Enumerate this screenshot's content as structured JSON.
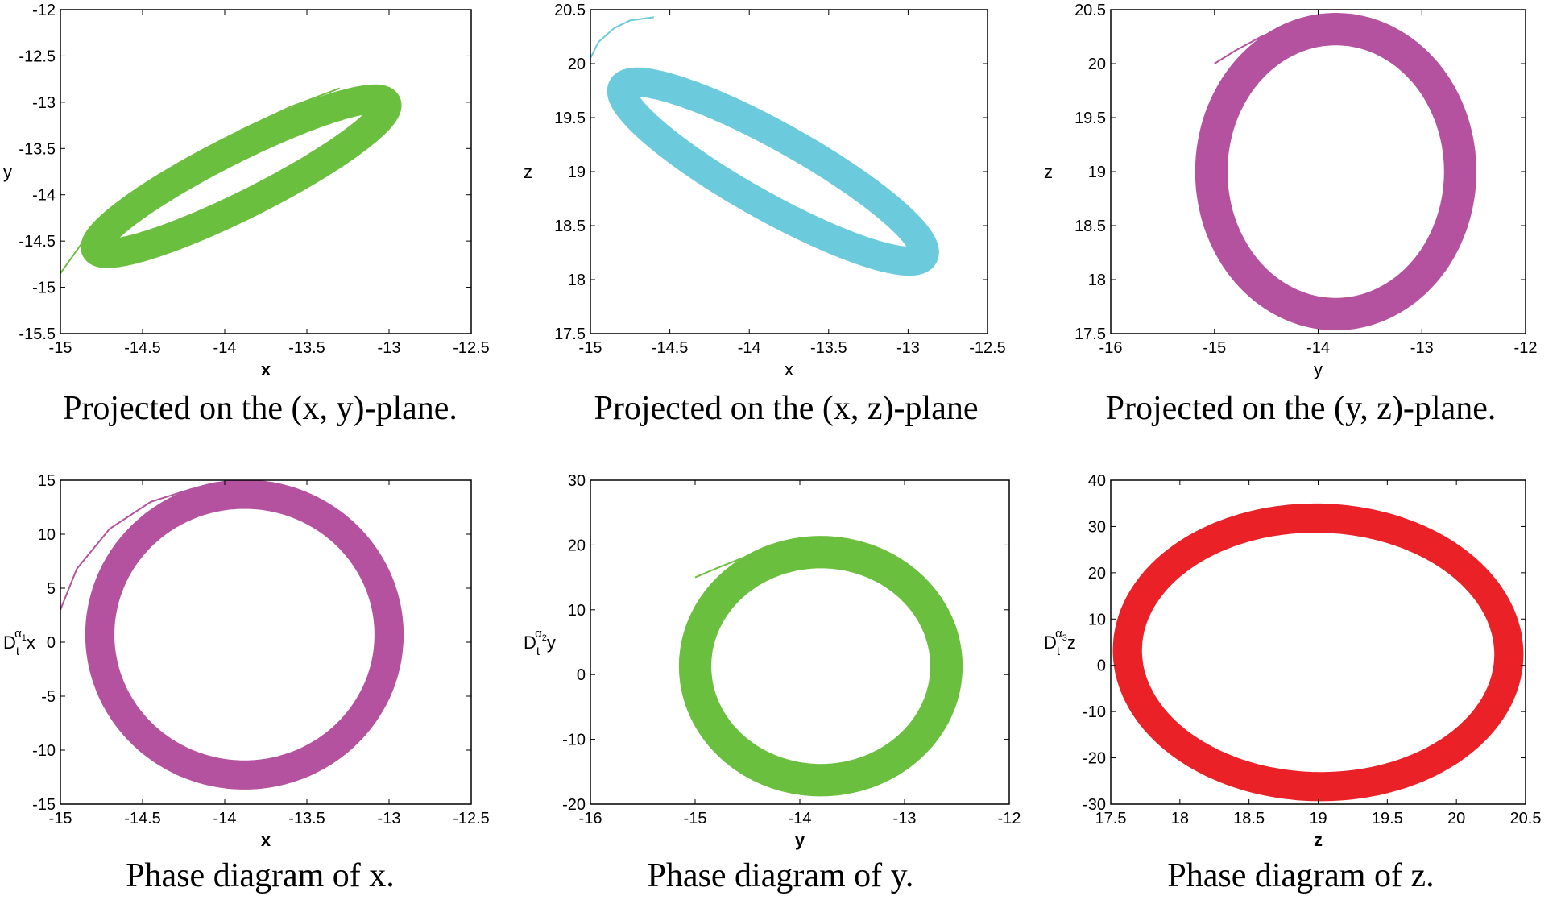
{
  "chart_data": [
    {
      "type": "line",
      "caption": "Projected on the (x, y)-plane.",
      "xlabel": "x",
      "ylabel": "y",
      "xlim": [
        -15,
        -12.5
      ],
      "ylim": [
        -15.5,
        -12
      ],
      "xticks": [
        "-15",
        "-14.5",
        "-14",
        "-13.5",
        "-13",
        "-12.5"
      ],
      "yticks": [
        "-15.5",
        "-15",
        "-14.5",
        "-14",
        "-13.5",
        "-13",
        "-12.5",
        "-12"
      ],
      "color": "#6bbf3f",
      "series": [
        {
          "kind": "band",
          "cx": -13.9,
          "cy": -13.8,
          "a": 1.05,
          "b": 0.28,
          "angle_deg": 33,
          "band": 0.09
        },
        {
          "kind": "transient",
          "x": [
            -15,
            -14.8,
            -14.5,
            -14.2,
            -13.9,
            -13.6,
            -13.3
          ],
          "y": [
            -14.85,
            -14.35,
            -13.95,
            -13.6,
            -13.3,
            -13.05,
            -12.85
          ]
        }
      ]
    },
    {
      "type": "line",
      "caption": "Projected on the (x, z)-plane",
      "xlabel": "x",
      "ylabel": "z",
      "xlim": [
        -15,
        -12.5
      ],
      "ylim": [
        17.5,
        20.5
      ],
      "xticks": [
        "-15",
        "-14.5",
        "-14",
        "-13.5",
        "-13",
        "-12.5"
      ],
      "yticks": [
        "17.5",
        "18",
        "18.5",
        "19",
        "19.5",
        "20",
        "20.5"
      ],
      "color": "#6bcbdc",
      "series": [
        {
          "kind": "band",
          "cx": -13.85,
          "cy": 19.0,
          "a": 1.15,
          "b": 0.3,
          "angle_deg": -35,
          "band": 0.09
        },
        {
          "kind": "transient",
          "x": [
            -15,
            -14.95,
            -14.85,
            -14.75,
            -14.6
          ],
          "y": [
            20.05,
            20.2,
            20.33,
            20.4,
            20.43
          ]
        }
      ]
    },
    {
      "type": "line",
      "caption": "Projected on the (y, z)-plane.",
      "xlabel": "y",
      "ylabel": "z",
      "xlim": [
        -16,
        -12
      ],
      "ylim": [
        17.5,
        20.5
      ],
      "xticks": [
        "-16",
        "-15",
        "-14",
        "-13",
        "-12"
      ],
      "yticks": [
        "17.5",
        "18",
        "18.5",
        "19",
        "19.5",
        "20",
        "20.5"
      ],
      "color": "#b4529f",
      "series": [
        {
          "kind": "band",
          "cx": -13.83,
          "cy": 19.0,
          "a": 1.2,
          "b": 1.32,
          "angle_deg": 0,
          "band": 0.1
        },
        {
          "kind": "transient",
          "x": [
            -15,
            -14.8,
            -14.55,
            -14.3,
            -14.05
          ],
          "y": [
            20.0,
            20.12,
            20.25,
            20.35,
            20.42
          ]
        }
      ]
    },
    {
      "type": "line",
      "caption": "Phase diagram of x.",
      "xlabel": "x",
      "ylabel": "D_t^{α1} x",
      "xlim": [
        -15,
        -12.5
      ],
      "ylim": [
        -15,
        15
      ],
      "xticks": [
        "-15",
        "-14.5",
        "-14",
        "-13.5",
        "-13",
        "-12.5"
      ],
      "yticks": [
        "-15",
        "-10",
        "-5",
        "0",
        "5",
        "10",
        "15"
      ],
      "color": "#b4529f",
      "series": [
        {
          "kind": "band",
          "cx": -13.88,
          "cy": 0.7,
          "a": 0.88,
          "b": 13.0,
          "angle_deg": 0,
          "band": 0.09
        },
        {
          "kind": "transient",
          "x": [
            -15,
            -14.9,
            -14.7,
            -14.45,
            -14.2,
            -13.95
          ],
          "y": [
            3.0,
            6.8,
            10.5,
            13.0,
            14.2,
            14.7
          ]
        }
      ]
    },
    {
      "type": "line",
      "caption": "Phase diagram of y.",
      "xlabel": "y",
      "ylabel": "D_t^{α2} y",
      "xlim": [
        -16,
        -12
      ],
      "ylim": [
        -20,
        30
      ],
      "xticks": [
        "-16",
        "-15",
        "-14",
        "-13",
        "-12"
      ],
      "yticks": [
        "-20",
        "-10",
        "0",
        "10",
        "20",
        "30"
      ],
      "color": "#6bbf3f",
      "series": [
        {
          "kind": "band",
          "cx": -13.8,
          "cy": 1.3,
          "a": 1.2,
          "b": 17.6,
          "angle_deg": 0,
          "band": 0.1
        },
        {
          "kind": "transient",
          "x": [
            -15,
            -14.75,
            -14.5,
            -14.25,
            -14.0
          ],
          "y": [
            15,
            16.7,
            18.3,
            19.5,
            20.2
          ]
        }
      ]
    },
    {
      "type": "line",
      "caption": "Phase diagram of z.",
      "xlabel": "z",
      "ylabel": "D_t^{α3} z",
      "xlim": [
        17.5,
        20.5
      ],
      "ylim": [
        -30,
        40
      ],
      "xticks": [
        "17.5",
        "18",
        "18.5",
        "19",
        "19.5",
        "20",
        "20.5"
      ],
      "yticks": [
        "-30",
        "-20",
        "-10",
        "0",
        "10",
        "20",
        "30",
        "40"
      ],
      "color": "#ea2227",
      "series": [
        {
          "kind": "band",
          "cx": 19.0,
          "cy": 2.8,
          "a": 1.38,
          "b": 29.0,
          "angle_deg": -4,
          "band": 0.09
        },
        {
          "kind": "transient",
          "x": [
            20.0,
            20.12,
            20.24,
            20.36,
            20.45
          ],
          "y": [
            25,
            21,
            17,
            12.5,
            7
          ]
        }
      ]
    }
  ]
}
